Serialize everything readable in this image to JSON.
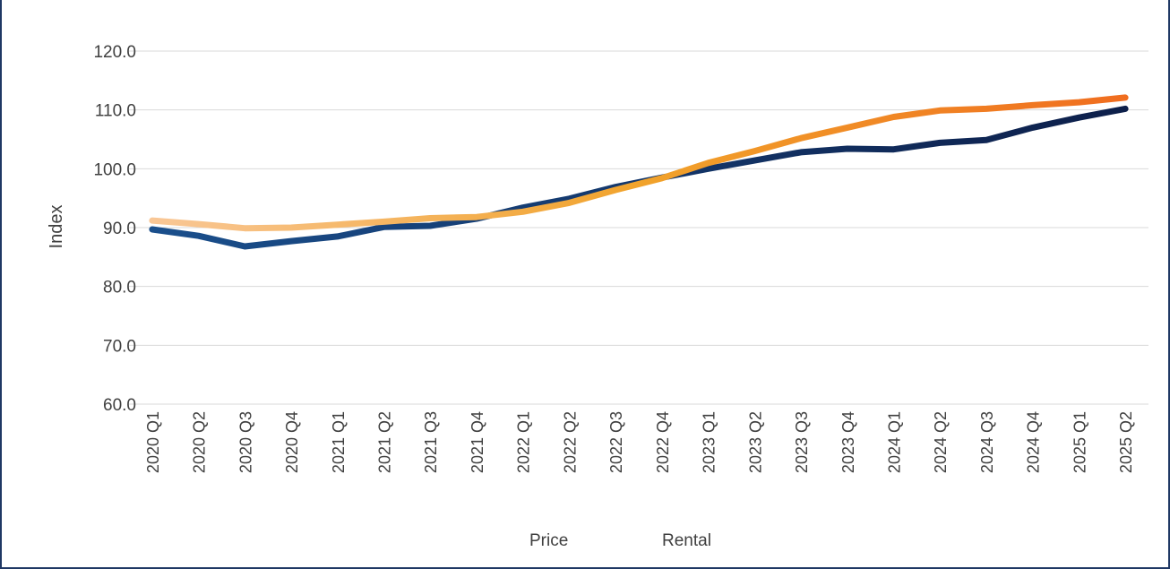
{
  "chart_data": {
    "type": "line",
    "title": "",
    "xlabel": "",
    "ylabel": "Index",
    "ylim": [
      60,
      120
    ],
    "yticks": [
      "60.0",
      "70.0",
      "80.0",
      "90.0",
      "100.0",
      "110.0",
      "120.0"
    ],
    "grid": true,
    "legend_position": "bottom",
    "categories": [
      "2020 Q1",
      "2020 Q2",
      "2020 Q3",
      "2020 Q4",
      "2021 Q1",
      "2021 Q2",
      "2021 Q3",
      "2021 Q4",
      "2022 Q1",
      "2022 Q2",
      "2022 Q3",
      "2022 Q4",
      "2023 Q1",
      "2023 Q2",
      "2023 Q3",
      "2023 Q4",
      "2024 Q1",
      "2024 Q2",
      "2024 Q3",
      "2024 Q4",
      "2025 Q1",
      "2025 Q2"
    ],
    "series": [
      {
        "name": "Price",
        "colors": [
          "#1a4f8c",
          "#0d1f4a"
        ],
        "values": [
          89.7,
          88.6,
          86.8,
          87.7,
          88.5,
          90.1,
          90.3,
          91.5,
          93.4,
          94.9,
          96.9,
          98.5,
          100.0,
          101.4,
          102.8,
          103.4,
          103.3,
          104.4,
          104.9,
          107.0,
          108.7,
          110.2
        ]
      },
      {
        "name": "Rental",
        "colors": [
          "#f9c796",
          "#f1a32b",
          "#f06d1f"
        ],
        "values": [
          91.2,
          90.6,
          89.9,
          90.0,
          90.5,
          91.0,
          91.6,
          91.8,
          92.7,
          94.2,
          96.4,
          98.4,
          101.0,
          103.0,
          105.2,
          107.0,
          108.8,
          109.9,
          110.2,
          110.8,
          111.3,
          112.1
        ]
      }
    ]
  }
}
